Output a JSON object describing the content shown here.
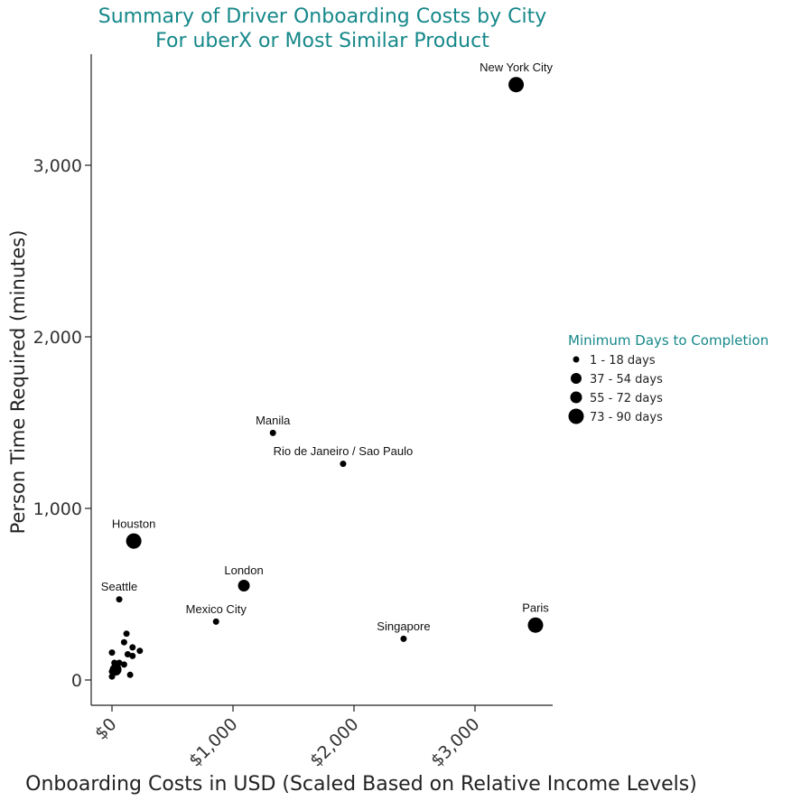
{
  "chart_data": {
    "type": "scatter",
    "title": "Summary of Driver Onboarding Costs by City",
    "subtitle": "For uberX or Most Similar Product",
    "xlabel": "Onboarding Costs in USD (Scaled Based on Relative Income Levels)",
    "ylabel": "Person Time Required (minutes)",
    "xlim": [
      -60,
      3640
    ],
    "ylim": [
      -160,
      3630
    ],
    "xticks": [
      0,
      1000,
      2000,
      3000
    ],
    "xtick_labels": [
      "$0",
      "$1,000",
      "$2,000",
      "$3,000"
    ],
    "yticks": [
      0,
      1000,
      2000,
      3000
    ],
    "ytick_labels": [
      "0",
      "1,000",
      "2,000",
      "3,000"
    ],
    "grid": false,
    "legend": {
      "title": "Minimum Days to Completion",
      "placement": "right",
      "entries": [
        {
          "label": "1 - 18 days",
          "size_class": 1
        },
        {
          "label": "37 - 54 days",
          "size_class": 2
        },
        {
          "label": "55 - 72 days",
          "size_class": 3
        },
        {
          "label": "73 - 90 days",
          "size_class": 4
        }
      ]
    },
    "points": [
      {
        "x": 3340,
        "y": 3470,
        "size_class": 4,
        "label": "New York City"
      },
      {
        "x": 1330,
        "y": 1440,
        "size_class": 1,
        "label": "Manila"
      },
      {
        "x": 1910,
        "y": 1260,
        "size_class": 1,
        "label": "Rio de Janeiro / Sao Paulo"
      },
      {
        "x": 180,
        "y": 810,
        "size_class": 4,
        "label": "Houston"
      },
      {
        "x": 1090,
        "y": 550,
        "size_class": 3,
        "label": "London"
      },
      {
        "x": 60,
        "y": 470,
        "size_class": 1,
        "label": "Seattle"
      },
      {
        "x": 860,
        "y": 340,
        "size_class": 1,
        "label": "Mexico City"
      },
      {
        "x": 2410,
        "y": 240,
        "size_class": 1,
        "label": "Singapore"
      },
      {
        "x": 3500,
        "y": 320,
        "size_class": 4,
        "label": "Paris"
      },
      {
        "x": 120,
        "y": 270,
        "size_class": 1,
        "label": ""
      },
      {
        "x": 100,
        "y": 220,
        "size_class": 1,
        "label": ""
      },
      {
        "x": 170,
        "y": 190,
        "size_class": 1,
        "label": ""
      },
      {
        "x": 0,
        "y": 160,
        "size_class": 1,
        "label": ""
      },
      {
        "x": 230,
        "y": 170,
        "size_class": 1,
        "label": ""
      },
      {
        "x": 130,
        "y": 150,
        "size_class": 1,
        "label": ""
      },
      {
        "x": 170,
        "y": 140,
        "size_class": 1,
        "label": ""
      },
      {
        "x": 20,
        "y": 100,
        "size_class": 1,
        "label": ""
      },
      {
        "x": 60,
        "y": 100,
        "size_class": 1,
        "label": ""
      },
      {
        "x": 100,
        "y": 90,
        "size_class": 1,
        "label": ""
      },
      {
        "x": 40,
        "y": 80,
        "size_class": 1,
        "label": ""
      },
      {
        "x": 30,
        "y": 60,
        "size_class": 3,
        "label": ""
      },
      {
        "x": 0,
        "y": 50,
        "size_class": 1,
        "label": ""
      },
      {
        "x": 150,
        "y": 30,
        "size_class": 1,
        "label": ""
      },
      {
        "x": 0,
        "y": 20,
        "size_class": 1,
        "label": ""
      },
      {
        "x": 50,
        "y": 70,
        "size_class": 1,
        "label": ""
      }
    ]
  }
}
